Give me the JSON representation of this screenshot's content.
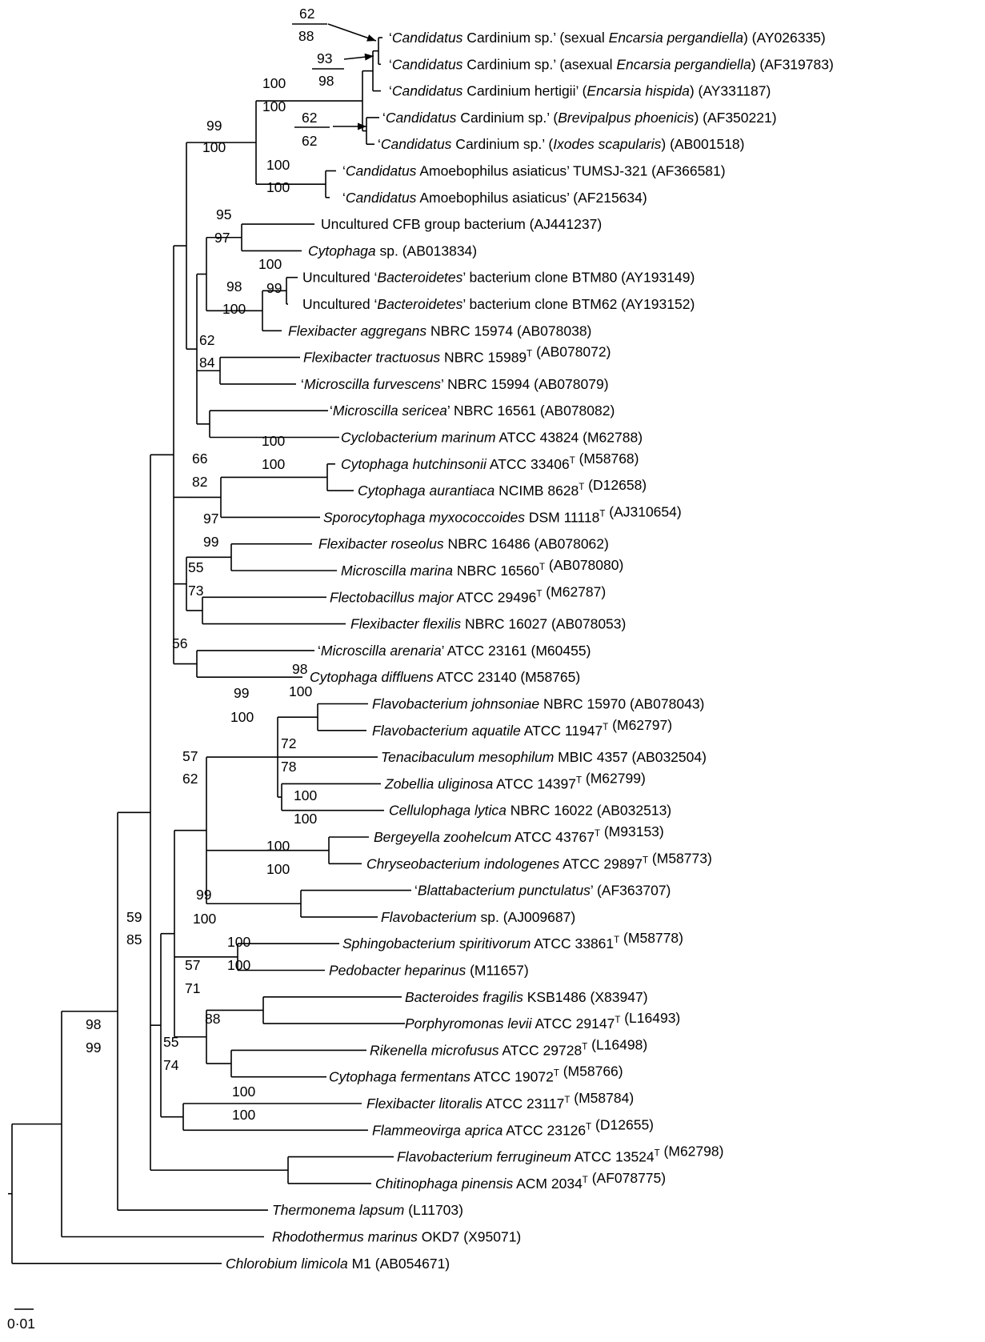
{
  "figure": {
    "type": "phylogenetic-tree",
    "scale_bar_label": "0·01",
    "scale_bar_value": 0.01
  },
  "taxa": [
    {
      "id": "t1",
      "label": [
        {
          "t": "‘"
        },
        {
          "t": "Candidatus",
          "i": true
        },
        {
          "t": " Cardinium sp.’ (sexual "
        },
        {
          "t": "Encarsia pergandiella",
          "i": true
        },
        {
          "t": ") (AY026335)"
        }
      ]
    },
    {
      "id": "t2",
      "label": [
        {
          "t": "‘"
        },
        {
          "t": "Candidatus",
          "i": true
        },
        {
          "t": " Cardinium sp.’ (asexual "
        },
        {
          "t": "Encarsia pergandiella",
          "i": true
        },
        {
          "t": ") (AF319783)"
        }
      ]
    },
    {
      "id": "t3",
      "label": [
        {
          "t": "‘"
        },
        {
          "t": "Candidatus",
          "i": true
        },
        {
          "t": " Cardinium hertigii’ ("
        },
        {
          "t": "Encarsia hispida",
          "i": true
        },
        {
          "t": ") (AY331187)"
        }
      ]
    },
    {
      "id": "t4",
      "label": [
        {
          "t": "‘"
        },
        {
          "t": "Candidatus",
          "i": true
        },
        {
          "t": " Cardinium sp.’ ("
        },
        {
          "t": "Brevipalpus phoenicis",
          "i": true
        },
        {
          "t": ") (AF350221)"
        }
      ]
    },
    {
      "id": "t5",
      "label": [
        {
          "t": "‘"
        },
        {
          "t": "Candidatus",
          "i": true
        },
        {
          "t": " Cardinium sp.’ ("
        },
        {
          "t": "Ixodes scapularis",
          "i": true
        },
        {
          "t": ") (AB001518)"
        }
      ]
    },
    {
      "id": "t6",
      "label": [
        {
          "t": "‘"
        },
        {
          "t": "Candidatus",
          "i": true
        },
        {
          "t": " Amoebophilus asiaticus’ TUMSJ-321 (AF366581)"
        }
      ]
    },
    {
      "id": "t7",
      "label": [
        {
          "t": "‘"
        },
        {
          "t": "Candidatus",
          "i": true
        },
        {
          "t": " Amoebophilus asiaticus’ (AF215634)"
        }
      ]
    },
    {
      "id": "t8",
      "label": [
        {
          "t": "Uncultured CFB group bacterium (AJ441237)"
        }
      ]
    },
    {
      "id": "t9",
      "label": [
        {
          "t": "Cytophaga",
          "i": true
        },
        {
          "t": " sp. (AB013834)"
        }
      ]
    },
    {
      "id": "t10",
      "label": [
        {
          "t": "Uncultured ‘"
        },
        {
          "t": "Bacteroidetes",
          "i": true
        },
        {
          "t": "’ bacterium clone BTM80 (AY193149)"
        }
      ]
    },
    {
      "id": "t11",
      "label": [
        {
          "t": "Uncultured ‘"
        },
        {
          "t": "Bacteroidetes",
          "i": true
        },
        {
          "t": "’ bacterium clone BTM62 (AY193152)"
        }
      ]
    },
    {
      "id": "t12",
      "label": [
        {
          "t": "Flexibacter aggregans",
          "i": true
        },
        {
          "t": " NBRC 15974 (AB078038)"
        }
      ]
    },
    {
      "id": "t13",
      "label": [
        {
          "t": "Flexibacter tractuosus",
          "i": true
        },
        {
          "t": " NBRC 15989"
        },
        {
          "t": "T",
          "sup": true
        },
        {
          "t": " (AB078072)"
        }
      ]
    },
    {
      "id": "t14",
      "label": [
        {
          "t": "‘"
        },
        {
          "t": "Microscilla furvescens",
          "i": true
        },
        {
          "t": "’ NBRC 15994 (AB078079)"
        }
      ]
    },
    {
      "id": "t15",
      "label": [
        {
          "t": "‘"
        },
        {
          "t": "Microscilla sericea",
          "i": true
        },
        {
          "t": "’ NBRC 16561 (AB078082)"
        }
      ]
    },
    {
      "id": "t16",
      "label": [
        {
          "t": "Cyclobacterium marinum",
          "i": true
        },
        {
          "t": " ATCC 43824 (M62788)"
        }
      ]
    },
    {
      "id": "t17",
      "label": [
        {
          "t": "Cytophaga hutchinsonii",
          "i": true
        },
        {
          "t": " ATCC 33406"
        },
        {
          "t": "T",
          "sup": true
        },
        {
          "t": " (M58768)"
        }
      ]
    },
    {
      "id": "t18",
      "label": [
        {
          "t": "Cytophaga aurantiaca",
          "i": true
        },
        {
          "t": " NCIMB 8628"
        },
        {
          "t": "T",
          "sup": true
        },
        {
          "t": " (D12658)"
        }
      ]
    },
    {
      "id": "t19",
      "label": [
        {
          "t": "Sporocytophaga myxococcoides",
          "i": true
        },
        {
          "t": " DSM 11118"
        },
        {
          "t": "T",
          "sup": true
        },
        {
          "t": " (AJ310654)"
        }
      ]
    },
    {
      "id": "t20",
      "label": [
        {
          "t": "Flexibacter roseolus",
          "i": true
        },
        {
          "t": " NBRC 16486 (AB078062)"
        }
      ]
    },
    {
      "id": "t21",
      "label": [
        {
          "t": "Microscilla marina",
          "i": true
        },
        {
          "t": " NBRC 16560"
        },
        {
          "t": "T",
          "sup": true
        },
        {
          "t": " (AB078080)"
        }
      ]
    },
    {
      "id": "t22",
      "label": [
        {
          "t": "Flectobacillus major",
          "i": true
        },
        {
          "t": " ATCC 29496"
        },
        {
          "t": "T",
          "sup": true
        },
        {
          "t": " (M62787)"
        }
      ]
    },
    {
      "id": "t23",
      "label": [
        {
          "t": "Flexibacter flexilis",
          "i": true
        },
        {
          "t": " NBRC 16027 (AB078053)"
        }
      ]
    },
    {
      "id": "t24",
      "label": [
        {
          "t": "‘"
        },
        {
          "t": "Microscilla arenaria",
          "i": true
        },
        {
          "t": "’ ATCC 23161 (M60455)"
        }
      ]
    },
    {
      "id": "t25",
      "label": [
        {
          "t": "Cytophaga diffluens",
          "i": true
        },
        {
          "t": " ATCC 23140 (M58765)"
        }
      ]
    },
    {
      "id": "t26",
      "label": [
        {
          "t": "Flavobacterium johnsoniae",
          "i": true
        },
        {
          "t": " NBRC 15970 (AB078043)"
        }
      ]
    },
    {
      "id": "t27",
      "label": [
        {
          "t": "Flavobacterium aquatile",
          "i": true
        },
        {
          "t": " ATCC 11947"
        },
        {
          "t": "T",
          "sup": true
        },
        {
          "t": " (M62797)"
        }
      ]
    },
    {
      "id": "t28",
      "label": [
        {
          "t": "Tenacibaculum mesophilum",
          "i": true
        },
        {
          "t": " MBIC 4357 (AB032504)"
        }
      ]
    },
    {
      "id": "t29",
      "label": [
        {
          "t": "Zobellia uliginosa",
          "i": true
        },
        {
          "t": " ATCC 14397"
        },
        {
          "t": "T",
          "sup": true
        },
        {
          "t": " (M62799)"
        }
      ]
    },
    {
      "id": "t30",
      "label": [
        {
          "t": "Cellulophaga lytica",
          "i": true
        },
        {
          "t": " NBRC 16022 (AB032513)"
        }
      ]
    },
    {
      "id": "t31",
      "label": [
        {
          "t": "Bergeyella zoohelcum",
          "i": true
        },
        {
          "t": " ATCC 43767"
        },
        {
          "t": "T",
          "sup": true
        },
        {
          "t": " (M93153)"
        }
      ]
    },
    {
      "id": "t32",
      "label": [
        {
          "t": "Chryseobacterium indologenes",
          "i": true
        },
        {
          "t": " ATCC 29897"
        },
        {
          "t": "T",
          "sup": true
        },
        {
          "t": " (M58773)"
        }
      ]
    },
    {
      "id": "t33",
      "label": [
        {
          "t": "‘"
        },
        {
          "t": "Blattabacterium punctulatus",
          "i": true
        },
        {
          "t": "’ (AF363707)"
        }
      ]
    },
    {
      "id": "t34",
      "label": [
        {
          "t": "Flavobacterium",
          "i": true
        },
        {
          "t": " sp. (AJ009687)"
        }
      ]
    },
    {
      "id": "t35",
      "label": [
        {
          "t": "Sphingobacterium spiritivorum",
          "i": true
        },
        {
          "t": " ATCC 33861"
        },
        {
          "t": "T",
          "sup": true
        },
        {
          "t": " (M58778)"
        }
      ]
    },
    {
      "id": "t36",
      "label": [
        {
          "t": "Pedobacter heparinus",
          "i": true
        },
        {
          "t": " (M11657)"
        }
      ]
    },
    {
      "id": "t37",
      "label": [
        {
          "t": "Bacteroides fragilis",
          "i": true
        },
        {
          "t": " KSB1486 (X83947)"
        }
      ]
    },
    {
      "id": "t38",
      "label": [
        {
          "t": "Porphyromonas levii",
          "i": true
        },
        {
          "t": " ATCC 29147"
        },
        {
          "t": "T",
          "sup": true
        },
        {
          "t": " (L16493)"
        }
      ]
    },
    {
      "id": "t39",
      "label": [
        {
          "t": "Rikenella microfusus",
          "i": true
        },
        {
          "t": " ATCC 29728"
        },
        {
          "t": "T",
          "sup": true
        },
        {
          "t": " (L16498)"
        }
      ]
    },
    {
      "id": "t40",
      "label": [
        {
          "t": "Cytophaga fermentans",
          "i": true
        },
        {
          "t": " ATCC 19072"
        },
        {
          "t": "T",
          "sup": true
        },
        {
          "t": " (M58766)"
        }
      ]
    },
    {
      "id": "t41",
      "label": [
        {
          "t": "Flexibacter litoralis",
          "i": true
        },
        {
          "t": " ATCC 23117"
        },
        {
          "t": "T",
          "sup": true
        },
        {
          "t": " (M58784)"
        }
      ]
    },
    {
      "id": "t42",
      "label": [
        {
          "t": "Flammeovirga aprica",
          "i": true
        },
        {
          "t": " ATCC 23126"
        },
        {
          "t": "T",
          "sup": true
        },
        {
          "t": " (D12655)"
        }
      ]
    },
    {
      "id": "t43",
      "label": [
        {
          "t": "Flavobacterium ferrugineum",
          "i": true
        },
        {
          "t": " ATCC 13524"
        },
        {
          "t": "T",
          "sup": true
        },
        {
          "t": " (M62798)"
        }
      ]
    },
    {
      "id": "t44",
      "label": [
        {
          "t": "Chitinophaga pinensis",
          "i": true
        },
        {
          "t": " ACM 2034"
        },
        {
          "t": "T",
          "sup": true
        },
        {
          "t": " (AF078775)"
        }
      ]
    },
    {
      "id": "t45",
      "label": [
        {
          "t": "Thermonema lapsum",
          "i": true
        },
        {
          "t": " (L11703)"
        }
      ]
    },
    {
      "id": "t46",
      "label": [
        {
          "t": "Rhodothermus marinus",
          "i": true
        },
        {
          "t": " OKD7 (X95071)"
        }
      ]
    },
    {
      "id": "t47",
      "label": [
        {
          "t": "Chlorobium limicola",
          "i": true
        },
        {
          "t": " M1 (AB054671)"
        }
      ]
    }
  ],
  "bootstrap_labels": [
    {
      "id": "b1",
      "text": "62"
    },
    {
      "id": "b2",
      "text": "88"
    },
    {
      "id": "b3",
      "text": "93"
    },
    {
      "id": "b4",
      "text": "98"
    },
    {
      "id": "b5",
      "text": "62"
    },
    {
      "id": "b6",
      "text": "62"
    },
    {
      "id": "b7",
      "text": "100"
    },
    {
      "id": "b8",
      "text": "100"
    },
    {
      "id": "b9",
      "text": "99"
    },
    {
      "id": "b10",
      "text": "100"
    },
    {
      "id": "b11",
      "text": "100"
    },
    {
      "id": "b12",
      "text": "100"
    },
    {
      "id": "b13",
      "text": "95"
    },
    {
      "id": "b14",
      "text": "97"
    },
    {
      "id": "b15",
      "text": "100"
    },
    {
      "id": "b16",
      "text": "99"
    },
    {
      "id": "b17",
      "text": "98"
    },
    {
      "id": "b18",
      "text": "100"
    },
    {
      "id": "b19",
      "text": "62"
    },
    {
      "id": "b20",
      "text": "84"
    },
    {
      "id": "b21",
      "text": "100"
    },
    {
      "id": "b22",
      "text": "100"
    },
    {
      "id": "b23",
      "text": "66"
    },
    {
      "id": "b24",
      "text": "82"
    },
    {
      "id": "b25",
      "text": "97"
    },
    {
      "id": "b26",
      "text": "99"
    },
    {
      "id": "b27",
      "text": "55"
    },
    {
      "id": "b28",
      "text": "73"
    },
    {
      "id": "b29",
      "text": "56"
    },
    {
      "id": "b30",
      "text": "98"
    },
    {
      "id": "b31",
      "text": "100"
    },
    {
      "id": "b32",
      "text": "99"
    },
    {
      "id": "b33",
      "text": "100"
    },
    {
      "id": "b34",
      "text": "72"
    },
    {
      "id": "b35",
      "text": "78"
    },
    {
      "id": "b36",
      "text": "57"
    },
    {
      "id": "b37",
      "text": "62"
    },
    {
      "id": "b38",
      "text": "100"
    },
    {
      "id": "b39",
      "text": "100"
    },
    {
      "id": "b40",
      "text": "100"
    },
    {
      "id": "b41",
      "text": "100"
    },
    {
      "id": "b42",
      "text": "99"
    },
    {
      "id": "b43",
      "text": "100"
    },
    {
      "id": "b44",
      "text": "100"
    },
    {
      "id": "b45",
      "text": "100"
    },
    {
      "id": "b46",
      "text": "57"
    },
    {
      "id": "b47",
      "text": "71"
    },
    {
      "id": "b48",
      "text": "88"
    },
    {
      "id": "b49",
      "text": "55"
    },
    {
      "id": "b50",
      "text": "74"
    },
    {
      "id": "b51",
      "text": "100"
    },
    {
      "id": "b52",
      "text": "100"
    },
    {
      "id": "b53",
      "text": "59"
    },
    {
      "id": "b54",
      "text": "85"
    },
    {
      "id": "b55",
      "text": "98"
    },
    {
      "id": "b56",
      "text": "99"
    }
  ]
}
